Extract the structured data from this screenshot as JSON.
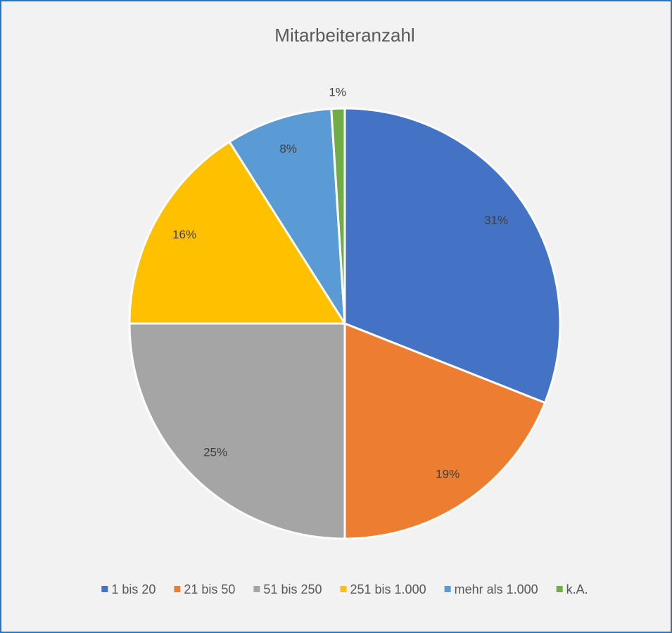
{
  "chart_data": {
    "type": "pie",
    "title": "Mitarbeiteranzahl",
    "categories": [
      "1 bis 20",
      "21 bis 50",
      "51 bis 250",
      "251 bis 1.000",
      "mehr als 1.000",
      "k.A."
    ],
    "values": [
      31,
      19,
      25,
      16,
      8,
      1
    ],
    "value_labels": [
      "31%",
      "19%",
      "25%",
      "16%",
      "8%",
      "1%"
    ],
    "colors": [
      "#4472c4",
      "#ed7d31",
      "#a5a5a5",
      "#ffc000",
      "#5b9bd5",
      "#70ad47"
    ],
    "legend": "bottom"
  }
}
